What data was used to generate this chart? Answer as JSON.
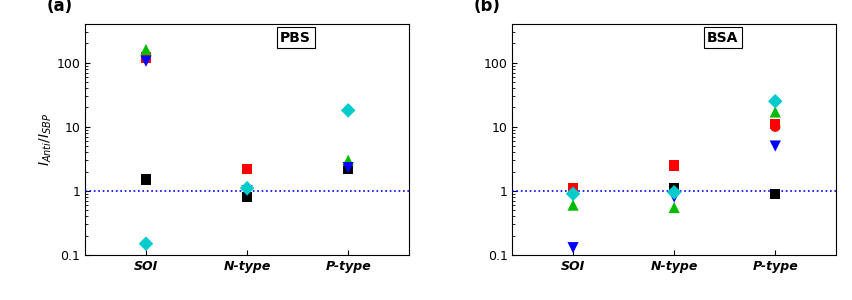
{
  "panel_a": {
    "title": "PBS",
    "label": "(a)",
    "categories": [
      "SOI",
      "N-type",
      "P-type"
    ],
    "series": {
      "black_square": {
        "color": "#000000",
        "marker": "s",
        "size": 55,
        "values": [
          1.5,
          0.8,
          2.2
        ]
      },
      "red_square": {
        "color": "#ff0000",
        "marker": "s",
        "size": 55,
        "values": [
          120.0,
          2.2,
          null
        ]
      },
      "green_triangle_up": {
        "color": "#00bb00",
        "marker": "^",
        "size": 65,
        "values": [
          160.0,
          null,
          3.0
        ]
      },
      "blue_triangle_down": {
        "color": "#0000ff",
        "marker": "v",
        "size": 65,
        "values": [
          105.0,
          1.0,
          2.3
        ]
      },
      "cyan_diamond": {
        "color": "#00cccc",
        "marker": "D",
        "size": 55,
        "values": [
          0.15,
          1.1,
          18.0
        ]
      }
    }
  },
  "panel_b": {
    "title": "BSA",
    "label": "(b)",
    "categories": [
      "SOI",
      "N-type",
      "P-type"
    ],
    "series": {
      "black_square": {
        "color": "#000000",
        "marker": "s",
        "size": 55,
        "values": [
          null,
          1.1,
          0.9
        ]
      },
      "red_square": {
        "color": "#ff0000",
        "marker": "s",
        "size": 55,
        "values": [
          1.1,
          2.5,
          11.0
        ]
      },
      "green_triangle_up": {
        "color": "#00bb00",
        "marker": "^",
        "size": 65,
        "values": [
          0.6,
          0.55,
          17.0
        ]
      },
      "blue_triangle_down": {
        "color": "#0000ff",
        "marker": "v",
        "size": 65,
        "values": [
          0.13,
          0.8,
          5.0
        ]
      },
      "cyan_diamond": {
        "color": "#00cccc",
        "marker": "D",
        "size": 55,
        "values": [
          0.9,
          0.95,
          25.0
        ]
      },
      "red_circle": {
        "color": "#ff0000",
        "marker": "o",
        "size": 55,
        "values": [
          null,
          null,
          10.0
        ]
      }
    }
  },
  "ylabel": "$I_{Anti}/I_{SBP}$",
  "ylim": [
    0.1,
    400
  ],
  "hline_y": 1.0,
  "hline_color": "#0000ff",
  "background_color": "#ffffff",
  "label_fontsize": 12,
  "title_fontsize": 10,
  "tick_fontsize": 9,
  "ylabel_fontsize": 10
}
